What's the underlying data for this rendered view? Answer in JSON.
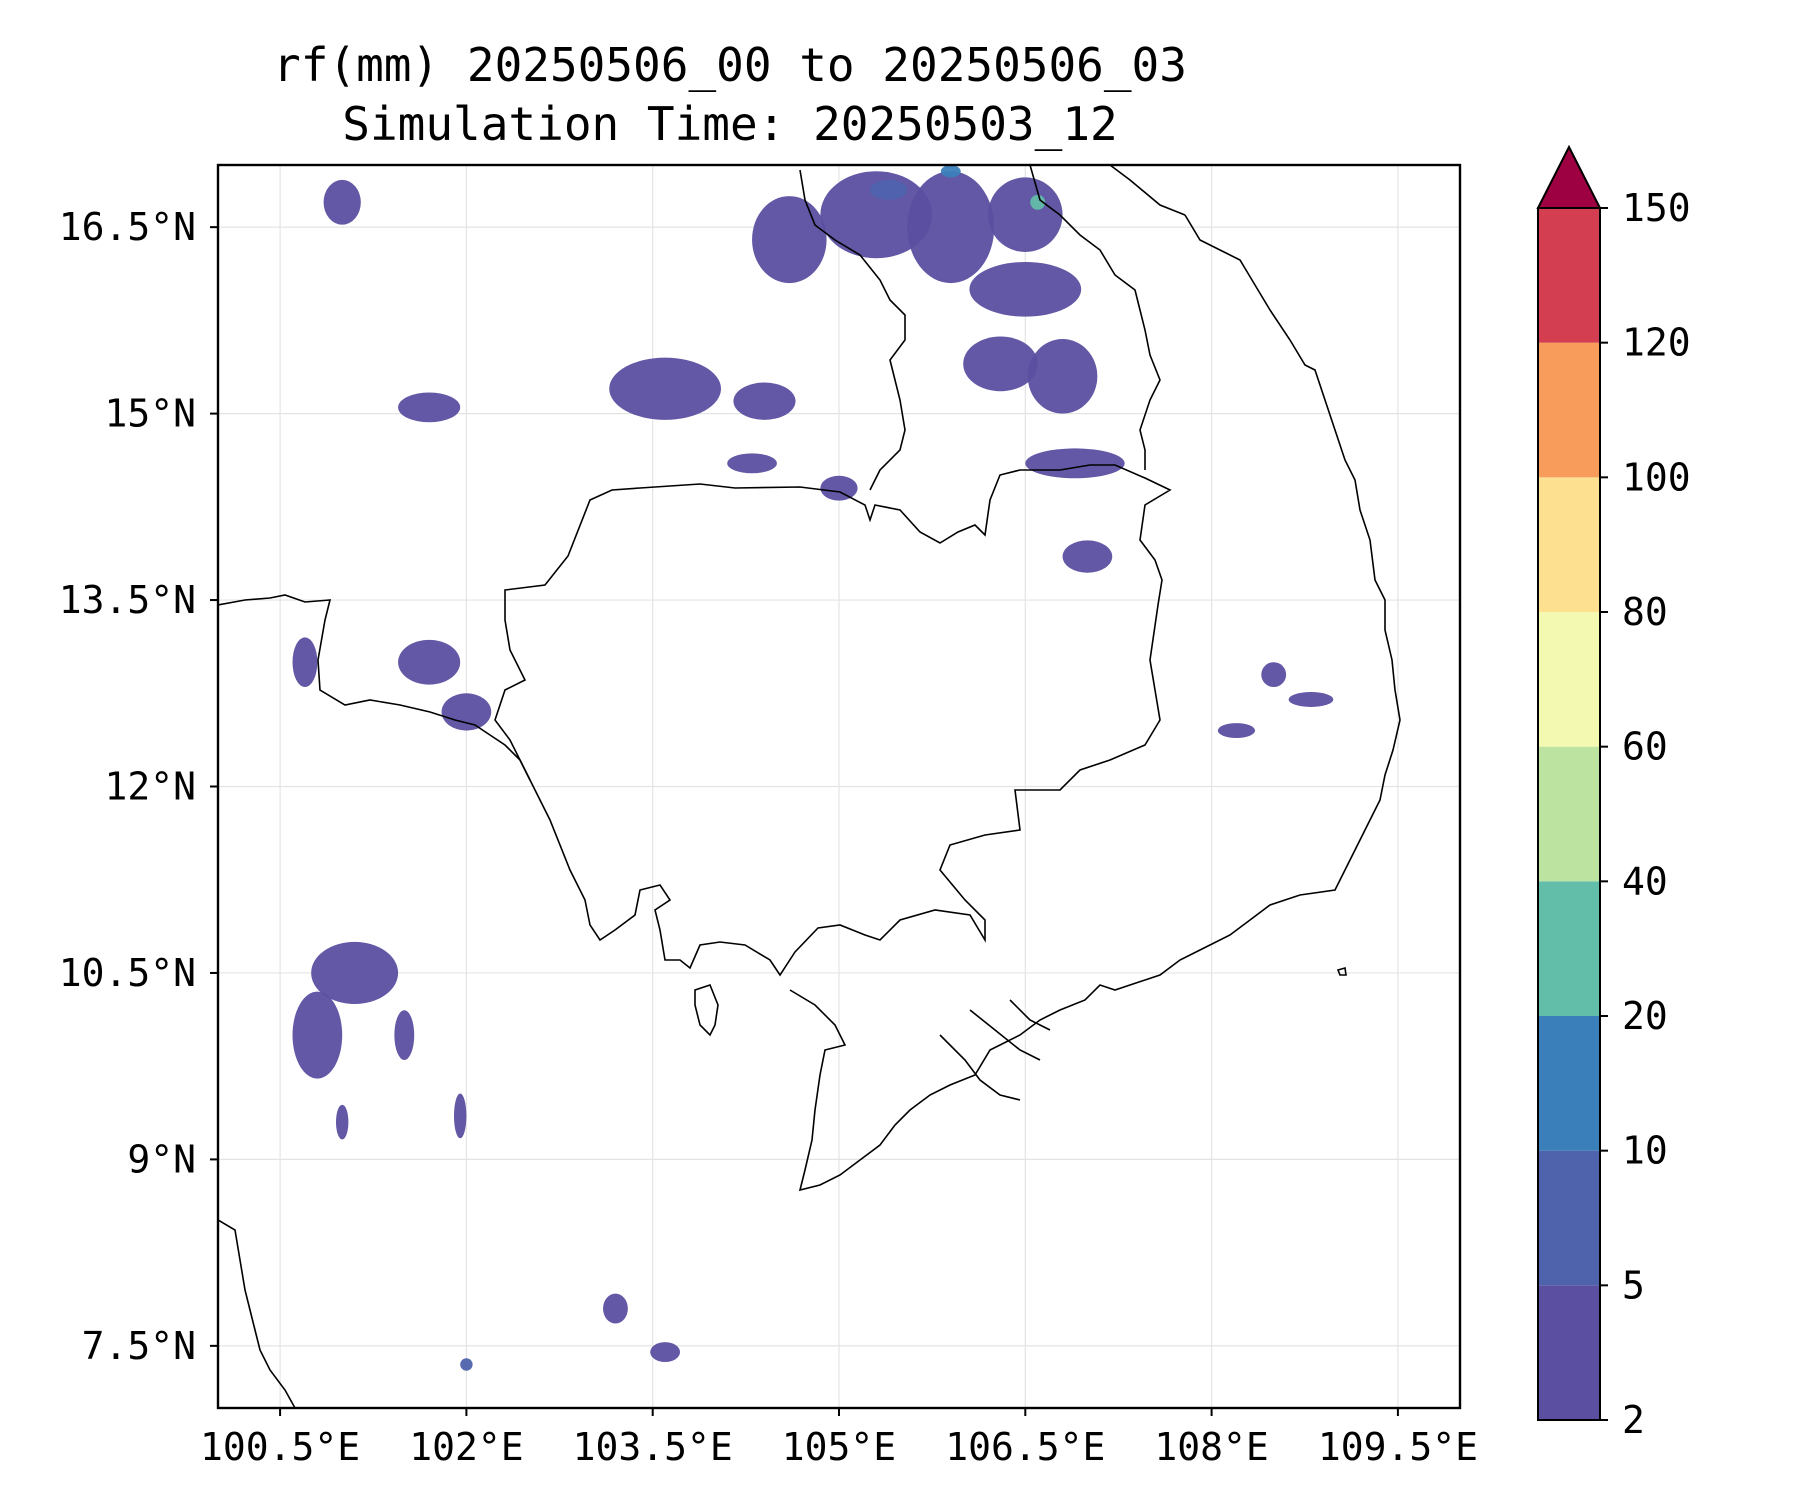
{
  "header": {
    "title_line1": "rf(mm) 20250506_00 to 20250506_03",
    "title_line2": "Simulation Time: 20250503_12"
  },
  "map": {
    "lon_range": [
      100.0,
      110.0
    ],
    "lat_range": [
      7.0,
      17.0
    ],
    "x_ticks": [
      {
        "lon": 100.5,
        "label": "100.5°E"
      },
      {
        "lon": 102.0,
        "label": "102°E"
      },
      {
        "lon": 103.5,
        "label": "103.5°E"
      },
      {
        "lon": 105.0,
        "label": "105°E"
      },
      {
        "lon": 106.5,
        "label": "106.5°E"
      },
      {
        "lon": 108.0,
        "label": "108°E"
      },
      {
        "lon": 109.5,
        "label": "109.5°E"
      }
    ],
    "y_ticks": [
      {
        "lat": 16.5,
        "label": "16.5°N"
      },
      {
        "lat": 15.0,
        "label": "15°N"
      },
      {
        "lat": 13.5,
        "label": "13.5°N"
      },
      {
        "lat": 12.0,
        "label": "12°N"
      },
      {
        "lat": 10.5,
        "label": "10.5°N"
      },
      {
        "lat": 9.0,
        "label": "9°N"
      },
      {
        "lat": 7.5,
        "label": "7.5°N"
      }
    ],
    "grid": true,
    "rain_patches": [
      {
        "lon": 101.0,
        "lat": 16.7,
        "rx": 0.15,
        "ry": 0.18,
        "level": 1
      },
      {
        "lon": 101.7,
        "lat": 15.05,
        "rx": 0.25,
        "ry": 0.12,
        "level": 1
      },
      {
        "lon": 103.6,
        "lat": 15.2,
        "rx": 0.45,
        "ry": 0.25,
        "level": 1
      },
      {
        "lon": 104.4,
        "lat": 15.1,
        "rx": 0.25,
        "ry": 0.15,
        "level": 1
      },
      {
        "lon": 104.6,
        "lat": 16.4,
        "rx": 0.3,
        "ry": 0.35,
        "level": 1
      },
      {
        "lon": 105.3,
        "lat": 16.6,
        "rx": 0.45,
        "ry": 0.35,
        "level": 1
      },
      {
        "lon": 105.9,
        "lat": 16.5,
        "rx": 0.35,
        "ry": 0.45,
        "level": 1
      },
      {
        "lon": 106.5,
        "lat": 16.6,
        "rx": 0.3,
        "ry": 0.3,
        "level": 1
      },
      {
        "lon": 106.3,
        "lat": 15.4,
        "rx": 0.3,
        "ry": 0.22,
        "level": 1
      },
      {
        "lon": 106.8,
        "lat": 15.3,
        "rx": 0.28,
        "ry": 0.3,
        "level": 1
      },
      {
        "lon": 106.9,
        "lat": 14.6,
        "rx": 0.4,
        "ry": 0.12,
        "level": 1
      },
      {
        "lon": 106.5,
        "lat": 16.0,
        "rx": 0.45,
        "ry": 0.22,
        "level": 1
      },
      {
        "lon": 105.0,
        "lat": 14.4,
        "rx": 0.15,
        "ry": 0.1,
        "level": 1
      },
      {
        "lon": 104.3,
        "lat": 14.6,
        "rx": 0.2,
        "ry": 0.08,
        "level": 1
      },
      {
        "lon": 107.0,
        "lat": 13.85,
        "rx": 0.2,
        "ry": 0.13,
        "level": 1
      },
      {
        "lon": 101.7,
        "lat": 13.0,
        "rx": 0.25,
        "ry": 0.18,
        "level": 1
      },
      {
        "lon": 102.0,
        "lat": 12.6,
        "rx": 0.2,
        "ry": 0.15,
        "level": 1
      },
      {
        "lon": 100.7,
        "lat": 13.0,
        "rx": 0.1,
        "ry": 0.2,
        "level": 1
      },
      {
        "lon": 101.1,
        "lat": 10.5,
        "rx": 0.35,
        "ry": 0.25,
        "level": 1
      },
      {
        "lon": 100.8,
        "lat": 10.0,
        "rx": 0.2,
        "ry": 0.35,
        "level": 1
      },
      {
        "lon": 101.5,
        "lat": 10.0,
        "rx": 0.08,
        "ry": 0.2,
        "level": 1
      },
      {
        "lon": 108.5,
        "lat": 12.9,
        "rx": 0.1,
        "ry": 0.1,
        "level": 1
      },
      {
        "lon": 108.8,
        "lat": 12.7,
        "rx": 0.18,
        "ry": 0.06,
        "level": 1
      },
      {
        "lon": 108.2,
        "lat": 12.45,
        "rx": 0.15,
        "ry": 0.06,
        "level": 1
      },
      {
        "lon": 103.2,
        "lat": 7.8,
        "rx": 0.1,
        "ry": 0.12,
        "level": 1
      },
      {
        "lon": 103.6,
        "lat": 7.45,
        "rx": 0.12,
        "ry": 0.08,
        "level": 1
      },
      {
        "lon": 101.0,
        "lat": 9.3,
        "rx": 0.05,
        "ry": 0.14,
        "level": 1
      },
      {
        "lon": 101.95,
        "lat": 9.35,
        "rx": 0.05,
        "ry": 0.18,
        "level": 1
      },
      {
        "lon": 106.6,
        "lat": 16.7,
        "rx": 0.06,
        "ry": 0.06,
        "level": 4
      },
      {
        "lon": 105.9,
        "lat": 16.95,
        "rx": 0.08,
        "ry": 0.05,
        "level": 3
      },
      {
        "lon": 105.4,
        "lat": 16.8,
        "rx": 0.15,
        "ry": 0.08,
        "level": 2
      },
      {
        "lon": 102.0,
        "lat": 7.35,
        "rx": 0.05,
        "ry": 0.05,
        "level": 2
      }
    ]
  },
  "colorbar": {
    "levels": [
      "2",
      "5",
      "10",
      "20",
      "40",
      "60",
      "80",
      "100",
      "120",
      "150"
    ],
    "colors": [
      "#5a4fa0",
      "#4f63ad",
      "#3b7fba",
      "#62bda9",
      "#bce3a0",
      "#f3f9b0",
      "#fde090",
      "#f89c5c",
      "#d43e51"
    ],
    "extend_color": "#9e0142"
  }
}
